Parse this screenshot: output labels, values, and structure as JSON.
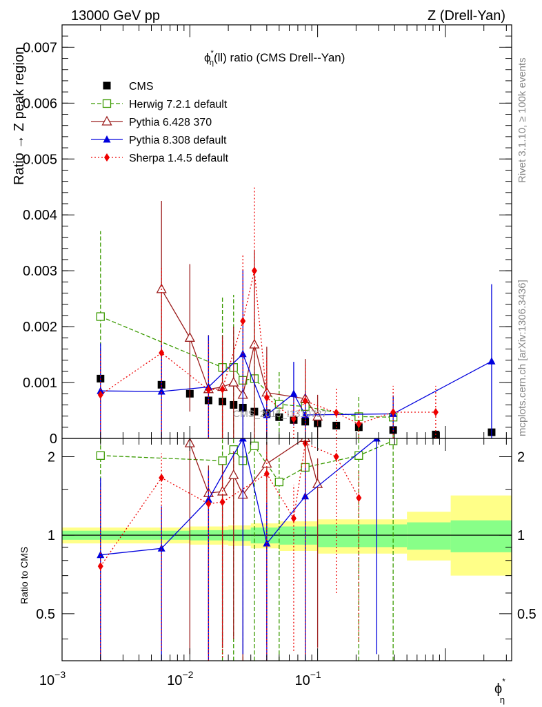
{
  "header": {
    "energy_label": "13000 GeV pp",
    "process_label": "Z (Drell-Yan)"
  },
  "side_labels": {
    "rivet": "Rivet 3.1.10, ≥ 100k events",
    "mcplots": "mcplots.cern.ch [arXiv:1306.3436]"
  },
  "watermark": "CMS_2015_I1310737",
  "chart_data": [
    {
      "type": "line",
      "panel": "main",
      "title_main": "ϕ",
      "title_sup": "*",
      "title_sub": "η",
      "title_rest": "(ll) ratio (CMS Drell--Yan)",
      "ylabel": "Ratio → Z peak region",
      "ylim": [
        0,
        0.0074
      ],
      "xlim": [
        0.001,
        3.3
      ],
      "xscale": "log",
      "yticks": [
        0,
        0.001,
        0.002,
        0.003,
        0.004,
        0.005,
        0.006,
        0.007
      ],
      "ytick_labels": [
        "0",
        "0.001",
        "0.002",
        "0.003",
        "0.004",
        "0.005",
        "0.006",
        "0.007"
      ],
      "series": [
        {
          "name": "CMS",
          "color": "#000000",
          "marker": "square-filled",
          "dash": "none",
          "x": [
            0.002,
            0.006,
            0.01,
            0.014,
            0.018,
            0.022,
            0.026,
            0.032,
            0.04,
            0.05,
            0.065,
            0.08,
            0.1,
            0.14,
            0.21,
            0.39,
            0.84,
            2.3
          ],
          "y": [
            0.00107,
            0.00096,
            0.0008,
            0.00068,
            0.00066,
            0.0006,
            0.00055,
            0.00048,
            0.00045,
            0.00038,
            0.00033,
            0.0003,
            0.00027,
            0.00023,
            0.0002,
            0.00015,
            7e-05,
            0.00011
          ],
          "err": [
            2e-05,
            2e-05,
            2e-05,
            2e-05,
            2e-05,
            2e-05,
            2e-05,
            2e-05,
            2e-05,
            2e-05,
            2e-05,
            2e-05,
            2e-05,
            2e-05,
            2e-05,
            2e-05,
            2e-05,
            2e-05
          ]
        },
        {
          "name": "Herwig 7.2.1 default",
          "color": "#3a9a00",
          "marker": "square-open",
          "dash": "6,3",
          "x": [
            0.002,
            0.018,
            0.022,
            0.026,
            0.032,
            0.05,
            0.08,
            0.21,
            0.39
          ],
          "y": [
            0.00218,
            0.00127,
            0.00127,
            0.00104,
            0.00107,
            0.00061,
            0.00057,
            0.00039,
            0.00038
          ],
          "err": [
            0.00153,
            0.00127,
            0.0013,
            0.00104,
            0.00107,
            0.00061,
            0.00057,
            0.00039,
            0.00038
          ]
        },
        {
          "name": "Pythia 6.428 370",
          "color": "#9b1c1c",
          "marker": "triangle-open",
          "dash": "none",
          "x": [
            0.006,
            0.01,
            0.014,
            0.018,
            0.022,
            0.026,
            0.032,
            0.04,
            0.08,
            0.1
          ],
          "y": [
            0.00267,
            0.0018,
            0.00088,
            0.00092,
            0.001,
            0.00078,
            0.00168,
            0.00082,
            0.00071,
            0.00039
          ],
          "err": [
            0.00158,
            0.00132,
            0.00097,
            0.00092,
            0.001,
            0.00078,
            0.00168,
            0.00082,
            0.00071,
            0.00039
          ]
        },
        {
          "name": "Pythia 8.308 default",
          "color": "#0000dd",
          "marker": "triangle-filled",
          "dash": "none",
          "x": [
            0.002,
            0.006,
            0.014,
            0.026,
            0.04,
            0.065,
            0.08,
            0.39,
            2.3
          ],
          "y": [
            0.00085,
            0.00084,
            0.00092,
            0.00151,
            0.00042,
            0.0008,
            0.00042,
            0.00044,
            0.00138
          ],
          "err": [
            0.00085,
            0.00084,
            0.00092,
            0.00151,
            0.00042,
            0.00057,
            0.00042,
            0.00033,
            0.00138
          ]
        },
        {
          "name": "Sherpa 1.4.5 default",
          "color": "#ee0000",
          "marker": "diamond-filled",
          "dash": "2,3",
          "x": [
            0.002,
            0.006,
            0.014,
            0.018,
            0.026,
            0.032,
            0.04,
            0.065,
            0.08,
            0.14,
            0.21,
            0.39,
            0.84
          ],
          "y": [
            0.00078,
            0.00153,
            0.00087,
            0.00088,
            0.0021,
            0.003,
            0.00073,
            0.00035,
            0.00067,
            0.00046,
            0.00026,
            0.00047,
            0.00047
          ],
          "err": [
            0.00078,
            0.00153,
            0.00087,
            0.00088,
            0.0012,
            0.0015,
            0.00073,
            0.00035,
            0.00067,
            0.00046,
            0.00026,
            0.00047,
            0.00047
          ]
        }
      ]
    },
    {
      "type": "line",
      "panel": "ratio",
      "ylabel": "Ratio to CMS",
      "xlabel_main": "ϕ",
      "xlabel_sup": "*",
      "xlabel_sub": "η",
      "ylim": [
        0.33,
        2.35
      ],
      "yscale": "log",
      "xlim": [
        0.001,
        3.3
      ],
      "xscale": "log",
      "yticks": [
        0.5,
        1,
        2
      ],
      "ytick_labels": [
        "0.5",
        "1",
        "2"
      ],
      "xtick_labels": [
        "10",
        "10",
        "10"
      ],
      "xtick_exps": [
        "−3",
        "−2",
        "−1"
      ],
      "band_edges": [
        0.001,
        0.005,
        0.01,
        0.02,
        0.03,
        0.05,
        0.1,
        0.5,
        1.1,
        3.3
      ],
      "band_green": [
        [
          0.96,
          1.04
        ],
        [
          0.96,
          1.04
        ],
        [
          0.955,
          1.045
        ],
        [
          0.95,
          1.05
        ],
        [
          0.93,
          1.07
        ],
        [
          0.92,
          1.08
        ],
        [
          0.9,
          1.1
        ],
        [
          0.88,
          1.12
        ],
        [
          0.86,
          1.14
        ]
      ],
      "band_yellow": [
        [
          0.93,
          1.07
        ],
        [
          0.93,
          1.07
        ],
        [
          0.92,
          1.08
        ],
        [
          0.91,
          1.09
        ],
        [
          0.89,
          1.11
        ],
        [
          0.87,
          1.13
        ],
        [
          0.85,
          1.15
        ],
        [
          0.8,
          1.23
        ],
        [
          0.7,
          1.42
        ]
      ],
      "series": [
        {
          "name": "Herwig 7.2.1 default",
          "color": "#3a9a00",
          "marker": "square-open",
          "dash": "6,3",
          "x": [
            0.002,
            0.018,
            0.022,
            0.026,
            0.032,
            0.05,
            0.08,
            0.21,
            0.39
          ],
          "y": [
            2.02,
            1.93,
            2.13,
            1.93,
            2.2,
            1.6,
            1.82,
            2.02,
            2.3
          ],
          "err_lo": [
            1.7,
            1.6,
            1.8,
            1.6,
            1.9,
            1.3,
            1.5,
            1.7,
            2.0
          ],
          "err_hi": [
            0.4,
            0.4,
            0.4,
            0.4,
            0.4,
            0.4,
            0.4,
            0.4,
            0.4
          ]
        },
        {
          "name": "Pythia 6.428 370",
          "color": "#9b1c1c",
          "marker": "triangle-open",
          "dash": "none",
          "x": [
            0.01,
            0.014,
            0.018,
            0.022,
            0.026,
            0.04,
            0.08,
            0.1
          ],
          "y": [
            2.25,
            1.45,
            1.47,
            1.7,
            1.43,
            1.88,
            2.36,
            1.57
          ],
          "err_lo": [
            1.9,
            1.1,
            1.1,
            1.3,
            1.1,
            1.5,
            2.0,
            1.2
          ],
          "err_hi": [
            0.4,
            0.4,
            0.4,
            0.4,
            0.4,
            0.4,
            0.4,
            0.4
          ]
        },
        {
          "name": "Pythia 8.308 default",
          "color": "#0000dd",
          "marker": "triangle-filled",
          "dash": "none",
          "x": [
            0.002,
            0.006,
            0.014,
            0.026,
            0.04,
            0.08,
            0.29
          ],
          "y": [
            0.84,
            0.89,
            1.37,
            2.35,
            0.93,
            1.41,
            2.35
          ],
          "err_lo": [
            0.6,
            0.6,
            1.1,
            2.0,
            0.7,
            1.1,
            2.0
          ],
          "err_hi": [
            0.82,
            0.4,
            0.4,
            0.4,
            0.4,
            0.4,
            0.4
          ]
        },
        {
          "name": "Sherpa 1.4.5 default",
          "color": "#ee0000",
          "marker": "diamond-filled",
          "dash": "2,3",
          "x": [
            0.002,
            0.006,
            0.014,
            0.018,
            0.04,
            0.065,
            0.08,
            0.14,
            0.21
          ],
          "y": [
            0.76,
            1.66,
            1.32,
            1.34,
            1.72,
            1.16,
            2.25,
            2.0,
            1.39
          ],
          "err_lo": [
            0.5,
            1.3,
            1.0,
            1.0,
            1.4,
            0.8,
            1.9,
            1.4,
            1.0
          ],
          "err_hi": [
            0.76,
            0.4,
            0.4,
            0.4,
            0.4,
            0.4,
            0.4,
            0.4,
            0.4
          ]
        }
      ]
    }
  ]
}
